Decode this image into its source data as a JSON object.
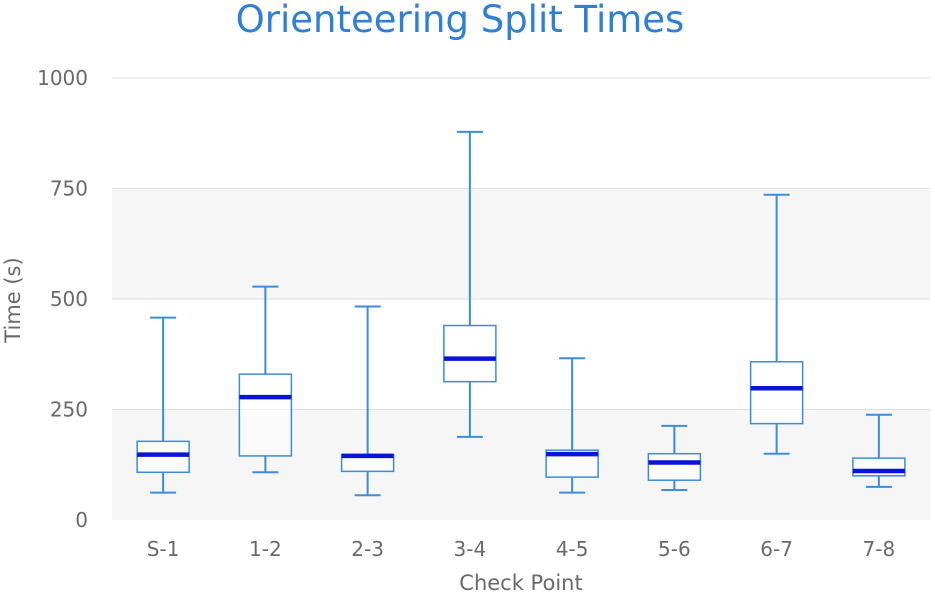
{
  "chart_data": {
    "type": "box",
    "title": "Orienteering Split Times",
    "xlabel": "Check Point",
    "ylabel": "Time (s)",
    "ylim": [
      0,
      1000
    ],
    "yticks": [
      0,
      250,
      500,
      750,
      1000
    ],
    "grid": true,
    "categories": [
      "S-1",
      "1-2",
      "2-3",
      "3-4",
      "4-5",
      "5-6",
      "6-7",
      "7-8"
    ],
    "boxes": [
      {
        "min": 62,
        "q1": 108,
        "median": 148,
        "q3": 178,
        "max": 458
      },
      {
        "min": 108,
        "q1": 145,
        "median": 278,
        "q3": 330,
        "max": 528
      },
      {
        "min": 56,
        "q1": 110,
        "median": 145,
        "q3": 148,
        "max": 483
      },
      {
        "min": 188,
        "q1": 313,
        "median": 365,
        "q3": 440,
        "max": 878
      },
      {
        "min": 62,
        "q1": 97,
        "median": 149,
        "q3": 158,
        "max": 366
      },
      {
        "min": 68,
        "q1": 90,
        "median": 130,
        "q3": 150,
        "max": 213
      },
      {
        "min": 150,
        "q1": 218,
        "median": 298,
        "q3": 358,
        "max": 736
      },
      {
        "min": 75,
        "q1": 100,
        "median": 111,
        "q3": 140,
        "max": 238
      }
    ],
    "colors": {
      "box_line": "#3b8ddc",
      "median_line": "#0a13d8",
      "title": "#2f7fd6",
      "axis_text": "#6a6a6a",
      "grid": "#dedede",
      "band": "#f6f6f6"
    }
  }
}
